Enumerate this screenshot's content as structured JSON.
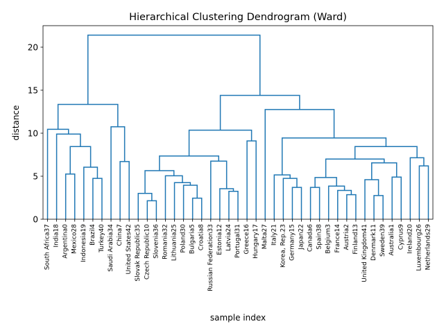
{
  "chart_data": {
    "type": "dendrogram",
    "title": "Hierarchical Clustering Dendrogram (Ward)",
    "xlabel": "sample index",
    "ylabel": "distance",
    "ylim": [
      0,
      22.5
    ],
    "yticks": [
      0,
      5,
      10,
      15,
      20
    ],
    "line_color": "#1f77b4",
    "leaves": [
      "South Africa37",
      "India18",
      "Argentina0",
      "Mexico28",
      "Indonesia19",
      "Brazil4",
      "Turkey40",
      "Saudi Arabia34",
      "China7",
      "United States42",
      "Slovak Republic35",
      "Czech Republic10",
      "Slovenia36",
      "Romania32",
      "Lithuania25",
      "Poland30",
      "Bulgaria5",
      "Croatia8",
      "Russian Federation33",
      "Estonia12",
      "Latvia24",
      "Portugal31",
      "Greece16",
      "Hungary17",
      "Malta27",
      "Italy21",
      "Korea, Rep.23",
      "Germany15",
      "Japan22",
      "Canada6",
      "Spain38",
      "Belgium3",
      "France14",
      "Austria2",
      "Finland13",
      "United Kingdom41",
      "Denmark11",
      "Sweden39",
      "Australia1",
      "Cyprus9",
      "Ireland20",
      "Luxembourg26",
      "Netherlands29"
    ],
    "merges": [
      {
        "left": {
          "leaf": 5
        },
        "right": {
          "leaf": 6
        },
        "distance": 4.75
      },
      {
        "left": {
          "leaf": 4
        },
        "right": {
          "node": 0
        },
        "distance": 6.05
      },
      {
        "left": {
          "leaf": 2
        },
        "right": {
          "leaf": 3
        },
        "distance": 5.25
      },
      {
        "left": {
          "node": 2
        },
        "right": {
          "node": 1
        },
        "distance": 8.45
      },
      {
        "left": {
          "leaf": 1
        },
        "right": {
          "node": 3
        },
        "distance": 9.9
      },
      {
        "left": {
          "leaf": 0
        },
        "right": {
          "node": 4
        },
        "distance": 10.45
      },
      {
        "left": {
          "leaf": 8
        },
        "right": {
          "leaf": 9
        },
        "distance": 6.7
      },
      {
        "left": {
          "leaf": 7
        },
        "right": {
          "node": 6
        },
        "distance": 10.75
      },
      {
        "left": {
          "node": 5
        },
        "right": {
          "node": 7
        },
        "distance": 13.35
      },
      {
        "left": {
          "leaf": 11
        },
        "right": {
          "leaf": 12
        },
        "distance": 2.15
      },
      {
        "left": {
          "leaf": 10
        },
        "right": {
          "node": 9
        },
        "distance": 3.0
      },
      {
        "left": {
          "leaf": 16
        },
        "right": {
          "leaf": 17
        },
        "distance": 2.45
      },
      {
        "left": {
          "leaf": 15
        },
        "right": {
          "node": 11
        },
        "distance": 3.95
      },
      {
        "left": {
          "leaf": 14
        },
        "right": {
          "node": 12
        },
        "distance": 4.25
      },
      {
        "left": {
          "leaf": 13
        },
        "right": {
          "node": 13
        },
        "distance": 5.05
      },
      {
        "left": {
          "node": 10
        },
        "right": {
          "node": 14
        },
        "distance": 5.65
      },
      {
        "left": {
          "leaf": 20
        },
        "right": {
          "leaf": 21
        },
        "distance": 3.25
      },
      {
        "left": {
          "leaf": 19
        },
        "right": {
          "node": 16
        },
        "distance": 3.55
      },
      {
        "left": {
          "leaf": 18
        },
        "right": {
          "node": 17
        },
        "distance": 6.75
      },
      {
        "left": {
          "node": 15
        },
        "right": {
          "node": 18
        },
        "distance": 7.35
      },
      {
        "left": {
          "leaf": 22
        },
        "right": {
          "leaf": 23
        },
        "distance": 9.1
      },
      {
        "left": {
          "node": 19
        },
        "right": {
          "node": 20
        },
        "distance": 10.35
      },
      {
        "left": {
          "leaf": 27
        },
        "right": {
          "leaf": 28
        },
        "distance": 3.7
      },
      {
        "left": {
          "leaf": 26
        },
        "right": {
          "node": 22
        },
        "distance": 4.75
      },
      {
        "left": {
          "leaf": 25
        },
        "right": {
          "node": 23
        },
        "distance": 5.15
      },
      {
        "left": {
          "leaf": 29
        },
        "right": {
          "leaf": 30
        },
        "distance": 3.7
      },
      {
        "left": {
          "leaf": 33
        },
        "right": {
          "leaf": 34
        },
        "distance": 2.85
      },
      {
        "left": {
          "leaf": 32
        },
        "right": {
          "node": 26
        },
        "distance": 3.35
      },
      {
        "left": {
          "leaf": 31
        },
        "right": {
          "node": 27
        },
        "distance": 3.85
      },
      {
        "left": {
          "node": 25
        },
        "right": {
          "node": 28
        },
        "distance": 4.85
      },
      {
        "left": {
          "leaf": 36
        },
        "right": {
          "leaf": 37
        },
        "distance": 2.75
      },
      {
        "left": {
          "leaf": 35
        },
        "right": {
          "node": 30
        },
        "distance": 4.6
      },
      {
        "left": {
          "leaf": 38
        },
        "right": {
          "leaf": 39
        },
        "distance": 4.9
      },
      {
        "left": {
          "node": 31
        },
        "right": {
          "node": 32
        },
        "distance": 6.55
      },
      {
        "left": {
          "node": 29
        },
        "right": {
          "node": 33
        },
        "distance": 7.0
      },
      {
        "left": {
          "leaf": 41
        },
        "right": {
          "leaf": 42
        },
        "distance": 6.2
      },
      {
        "left": {
          "leaf": 40
        },
        "right": {
          "node": 35
        },
        "distance": 7.15
      },
      {
        "left": {
          "node": 34
        },
        "right": {
          "node": 36
        },
        "distance": 8.45
      },
      {
        "left": {
          "node": 24
        },
        "right": {
          "node": 37
        },
        "distance": 9.45
      },
      {
        "left": {
          "leaf": 24
        },
        "right": {
          "node": 38
        },
        "distance": 12.75
      },
      {
        "left": {
          "node": 21
        },
        "right": {
          "node": 39
        },
        "distance": 14.4
      },
      {
        "left": {
          "node": 8
        },
        "right": {
          "node": 40
        },
        "distance": 21.4
      }
    ]
  }
}
